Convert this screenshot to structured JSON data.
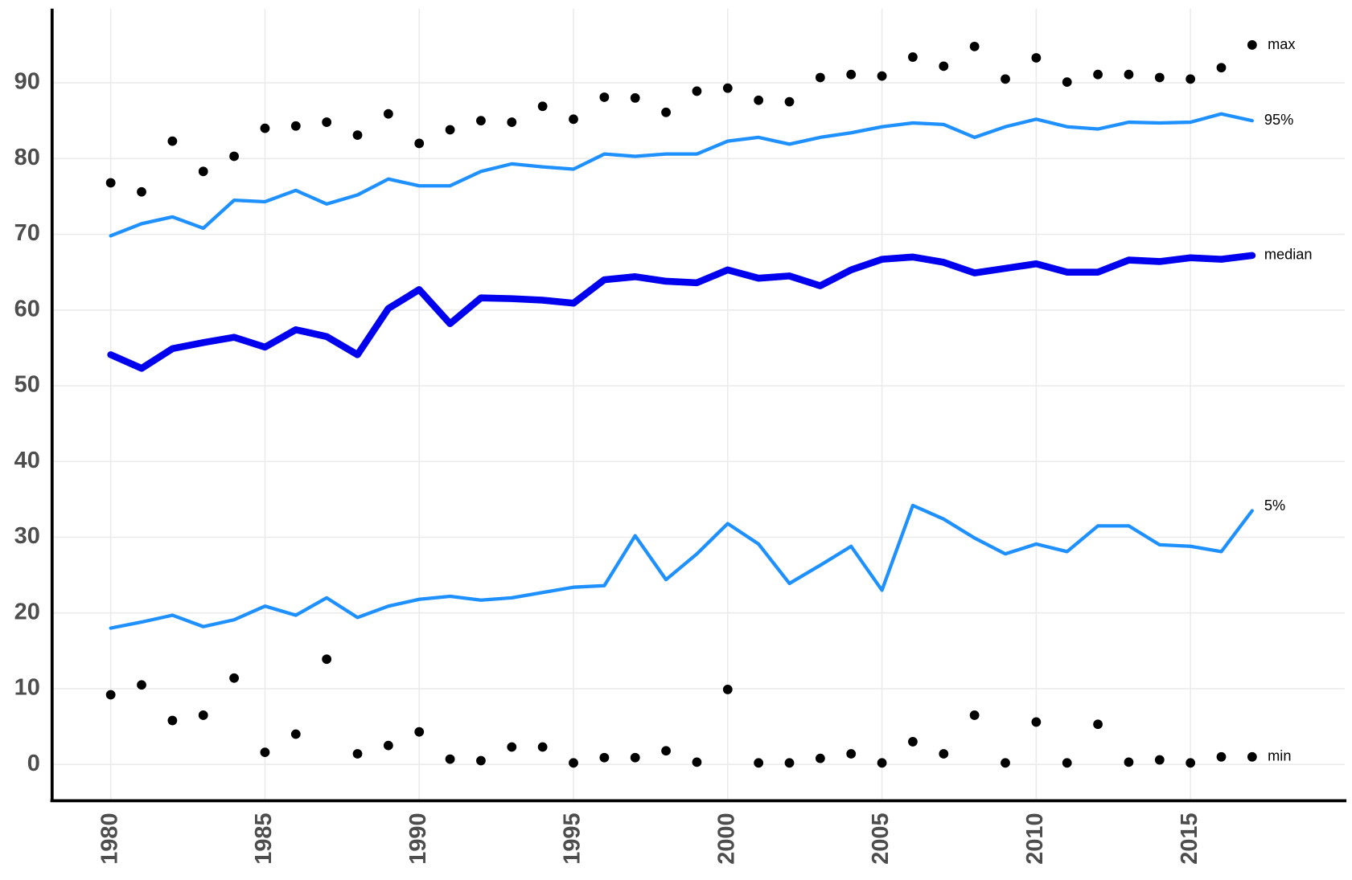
{
  "chart_data": {
    "type": "line",
    "x": [
      1980,
      1981,
      1982,
      1983,
      1984,
      1985,
      1986,
      1987,
      1988,
      1989,
      1990,
      1991,
      1992,
      1993,
      1994,
      1995,
      1996,
      1997,
      1998,
      1999,
      2000,
      2001,
      2002,
      2003,
      2004,
      2005,
      2006,
      2007,
      2008,
      2009,
      2010,
      2011,
      2012,
      2013,
      2014,
      2015,
      2016,
      2017
    ],
    "xlim": [
      1978.1,
      2020
    ],
    "xticks": [
      1980,
      1985,
      1990,
      1995,
      2000,
      2005,
      2010,
      2015
    ],
    "ylim": [
      -4.8,
      99.8
    ],
    "yticks": [
      0,
      10,
      20,
      30,
      40,
      50,
      60,
      70,
      80,
      90
    ],
    "grid": true,
    "series": [
      {
        "name": "max",
        "color": "#000000",
        "mode": "markers",
        "values": [
          76.8,
          75.6,
          82.3,
          78.3,
          80.3,
          84.0,
          84.3,
          84.8,
          83.1,
          85.9,
          82.0,
          83.8,
          85.0,
          84.8,
          86.9,
          85.2,
          88.1,
          88.0,
          86.1,
          88.9,
          89.3,
          87.7,
          87.5,
          90.7,
          91.1,
          90.9,
          93.4,
          92.2,
          94.8,
          90.5,
          93.3,
          90.1,
          91.1,
          91.1,
          90.7,
          90.5,
          92.0,
          95.0
        ]
      },
      {
        "name": "95%",
        "color": "#1e90ff",
        "mode": "lines",
        "line_width": 4,
        "values": [
          69.8,
          71.4,
          72.3,
          70.8,
          74.5,
          74.3,
          75.8,
          74.0,
          75.2,
          77.3,
          76.4,
          76.4,
          78.3,
          79.3,
          78.9,
          78.6,
          80.6,
          80.3,
          80.6,
          80.6,
          82.3,
          82.8,
          81.9,
          82.8,
          83.4,
          84.2,
          84.7,
          84.5,
          82.8,
          84.2,
          85.2,
          84.2,
          83.9,
          84.8,
          84.7,
          84.8,
          85.9,
          85.0
        ]
      },
      {
        "name": "median",
        "color": "#0000ee",
        "mode": "lines",
        "line_width": 8,
        "values": [
          54.1,
          52.3,
          54.9,
          55.7,
          56.4,
          55.1,
          57.4,
          56.5,
          54.1,
          60.2,
          62.7,
          58.2,
          61.6,
          61.5,
          61.3,
          60.9,
          64.0,
          64.4,
          63.8,
          63.6,
          65.3,
          64.2,
          64.5,
          63.2,
          65.3,
          66.7,
          67.0,
          66.3,
          64.9,
          65.5,
          66.1,
          65.0,
          65.0,
          66.6,
          66.4,
          66.9,
          66.7,
          67.2
        ]
      },
      {
        "name": "5%",
        "color": "#1e90ff",
        "mode": "lines",
        "line_width": 4,
        "values": [
          18.0,
          18.8,
          19.7,
          18.2,
          19.1,
          20.9,
          19.7,
          22.0,
          19.4,
          20.9,
          21.8,
          22.2,
          21.7,
          22.0,
          22.7,
          23.4,
          23.6,
          30.2,
          24.4,
          27.8,
          31.8,
          29.1,
          23.9,
          26.3,
          28.8,
          23.0,
          34.2,
          32.4,
          29.9,
          27.8,
          29.1,
          28.1,
          31.5,
          31.5,
          29.0,
          28.8,
          28.1,
          33.5
        ]
      },
      {
        "name": "min",
        "color": "#000000",
        "mode": "markers",
        "values": [
          9.2,
          10.5,
          5.8,
          6.5,
          11.4,
          1.6,
          4.0,
          13.9,
          1.4,
          2.5,
          4.3,
          0.7,
          0.5,
          2.3,
          2.3,
          0.2,
          0.9,
          0.9,
          1.8,
          0.3,
          9.9,
          0.2,
          0.2,
          0.8,
          1.4,
          0.2,
          3.0,
          1.4,
          6.5,
          0.2,
          5.6,
          0.2,
          5.3,
          0.3,
          0.6,
          0.2,
          1.0,
          1.0
        ]
      }
    ]
  }
}
